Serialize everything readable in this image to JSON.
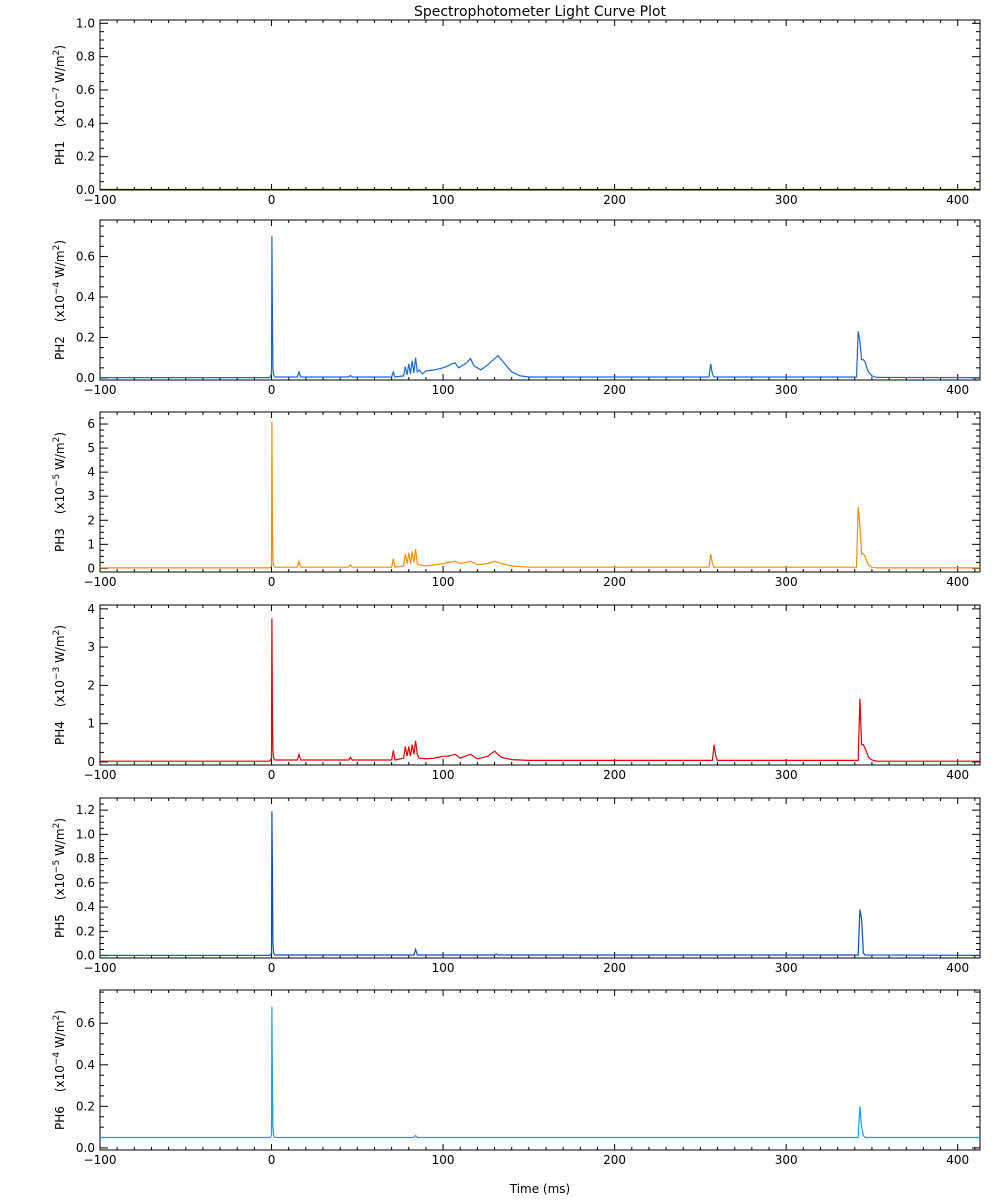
{
  "chart_data": {
    "type": "line",
    "title": "Spectrophotometer Light Curve Plot",
    "xlabel": "Time (ms)",
    "xlim": [
      -100,
      413
    ],
    "x_ticks": [
      -100,
      0,
      100,
      200,
      300,
      400
    ],
    "panels": [
      {
        "name": "PH1",
        "ylabel_prefix": "PH1",
        "unit_base": "(x10",
        "unit_exp": "−7",
        "unit_rest": " W/m",
        "unit_sq": "2",
        "unit_close": ")",
        "color": "#000066",
        "ylim": [
          0,
          1.02
        ],
        "y_ticks": [
          0.0,
          0.2,
          0.4,
          0.6,
          0.8,
          1.0
        ],
        "y_tick_labels": [
          "0.0",
          "0.2",
          "0.4",
          "0.6",
          "0.8",
          "1.0"
        ],
        "x": [
          -100,
          413
        ],
        "y": [
          0.003,
          0.003
        ]
      },
      {
        "name": "PH2",
        "ylabel_prefix": "PH2",
        "unit_base": "(x10",
        "unit_exp": "−4",
        "unit_rest": " W/m",
        "unit_sq": "2",
        "unit_close": ")",
        "color": "#1a66d6",
        "ylim": [
          -0.01,
          0.78
        ],
        "y_ticks": [
          0.0,
          0.2,
          0.4,
          0.6
        ],
        "y_tick_labels": [
          "0.0",
          "0.2",
          "0.4",
          "0.6"
        ],
        "x": [
          -100,
          -1,
          0,
          0.2,
          0.5,
          0.8,
          1.2,
          2,
          15,
          16,
          17,
          30,
          45,
          46,
          47,
          70,
          71,
          72,
          77,
          78,
          79,
          80,
          81,
          82,
          83,
          84,
          85,
          86,
          88,
          90,
          95,
          100,
          103,
          105,
          107,
          109,
          113,
          116,
          118,
          122,
          126,
          130,
          132,
          136,
          140,
          145,
          150,
          255,
          256,
          257,
          258,
          270,
          341,
          342,
          343,
          344,
          345,
          346,
          347,
          348,
          350,
          353,
          413
        ],
        "y": [
          0.002,
          0.002,
          0.02,
          0.7,
          0.35,
          0.05,
          0.015,
          0.005,
          0.005,
          0.03,
          0.005,
          0.005,
          0.005,
          0.012,
          0.005,
          0.005,
          0.03,
          0.005,
          0.01,
          0.055,
          0.015,
          0.07,
          0.02,
          0.085,
          0.025,
          0.1,
          0.03,
          0.04,
          0.02,
          0.035,
          0.04,
          0.05,
          0.06,
          0.07,
          0.075,
          0.05,
          0.07,
          0.095,
          0.06,
          0.04,
          0.065,
          0.095,
          0.11,
          0.07,
          0.03,
          0.01,
          0.005,
          0.005,
          0.07,
          0.02,
          0.005,
          0.005,
          0.005,
          0.23,
          0.18,
          0.09,
          0.09,
          0.08,
          0.05,
          0.03,
          0.01,
          0.003,
          0.002
        ]
      },
      {
        "name": "PH3",
        "ylabel_prefix": "PH3",
        "unit_base": "(x10",
        "unit_exp": "−5",
        "unit_rest": " W/m",
        "unit_sq": "2",
        "unit_close": ")",
        "color": "#ff8c00",
        "ylim": [
          -0.15,
          6.5
        ],
        "y_ticks": [
          0,
          1,
          2,
          3,
          4,
          5,
          6
        ],
        "y_tick_labels": [
          "0",
          "1",
          "2",
          "3",
          "4",
          "5",
          "6"
        ],
        "x": [
          -100,
          -1,
          0,
          0.2,
          0.5,
          0.8,
          1.2,
          2,
          15,
          16,
          17,
          45,
          46,
          47,
          70,
          71,
          72,
          77,
          78,
          79,
          80,
          81,
          82,
          83,
          84,
          85,
          86,
          90,
          95,
          100,
          103,
          107,
          110,
          116,
          120,
          126,
          130,
          134,
          140,
          150,
          255,
          256,
          257,
          258,
          341,
          342,
          343,
          344,
          345,
          346,
          347,
          348,
          350,
          353,
          413
        ],
        "y": [
          0.02,
          0.02,
          0.1,
          6.1,
          2.0,
          0.4,
          0.1,
          0.05,
          0.05,
          0.3,
          0.05,
          0.05,
          0.15,
          0.05,
          0.05,
          0.4,
          0.05,
          0.1,
          0.6,
          0.2,
          0.65,
          0.2,
          0.7,
          0.25,
          0.8,
          0.2,
          0.15,
          0.1,
          0.15,
          0.2,
          0.25,
          0.3,
          0.2,
          0.3,
          0.15,
          0.2,
          0.3,
          0.2,
          0.1,
          0.05,
          0.05,
          0.6,
          0.2,
          0.05,
          0.05,
          2.55,
          1.8,
          0.6,
          0.6,
          0.5,
          0.3,
          0.15,
          0.05,
          0.02,
          0.02
        ]
      },
      {
        "name": "PH4",
        "ylabel_prefix": "PH4",
        "unit_base": "(x10",
        "unit_exp": "−3",
        "unit_rest": " W/m",
        "unit_sq": "2",
        "unit_close": ")",
        "color": "#e00000",
        "ylim": [
          -0.08,
          4.1
        ],
        "y_ticks": [
          0,
          1,
          2,
          3,
          4
        ],
        "y_tick_labels": [
          "0",
          "1",
          "2",
          "3",
          "4"
        ],
        "x": [
          -100,
          -1,
          0,
          0.2,
          0.5,
          0.8,
          1.2,
          2,
          15,
          16,
          17,
          45,
          46,
          47,
          70,
          71,
          72,
          77,
          78,
          79,
          80,
          81,
          82,
          83,
          84,
          85,
          86,
          90,
          95,
          100,
          103,
          107,
          110,
          116,
          120,
          126,
          130,
          134,
          140,
          150,
          257,
          258,
          259,
          260,
          342,
          343,
          344,
          345,
          346,
          347,
          348,
          350,
          353,
          413
        ],
        "y": [
          0.02,
          0.02,
          0.1,
          3.75,
          1.3,
          0.3,
          0.1,
          0.05,
          0.05,
          0.2,
          0.05,
          0.05,
          0.12,
          0.05,
          0.05,
          0.3,
          0.05,
          0.1,
          0.4,
          0.15,
          0.4,
          0.15,
          0.45,
          0.2,
          0.55,
          0.2,
          0.1,
          0.08,
          0.1,
          0.15,
          0.15,
          0.2,
          0.1,
          0.2,
          0.08,
          0.15,
          0.28,
          0.12,
          0.06,
          0.04,
          0.04,
          0.45,
          0.15,
          0.04,
          0.04,
          1.65,
          0.45,
          0.45,
          0.35,
          0.25,
          0.12,
          0.05,
          0.02,
          0.02
        ]
      },
      {
        "name": "PH5",
        "ylabel_prefix": "PH5",
        "unit_base": "(x10",
        "unit_exp": "−5",
        "unit_rest": " W/m",
        "unit_sq": "2",
        "unit_close": ")",
        "color": "#0a4fc0",
        "ylim": [
          -0.02,
          1.3
        ],
        "y_ticks": [
          0.0,
          0.2,
          0.4,
          0.6,
          0.8,
          1.0,
          1.2
        ],
        "y_tick_labels": [
          "0.0",
          "0.2",
          "0.4",
          "0.6",
          "0.8",
          "1.0",
          "1.2"
        ],
        "x": [
          -100,
          -1,
          0,
          0.2,
          0.5,
          0.8,
          1.2,
          2,
          83,
          84,
          85,
          130,
          131,
          132,
          342,
          343,
          344,
          345,
          346,
          413
        ],
        "y": [
          0.002,
          0.002,
          0.02,
          1.19,
          0.72,
          0.1,
          0.02,
          0.005,
          0.005,
          0.05,
          0.005,
          0.005,
          0.012,
          0.005,
          0.005,
          0.38,
          0.3,
          0.02,
          0.005,
          0.002
        ]
      },
      {
        "name": "PH6",
        "ylabel_prefix": "PH6",
        "unit_base": "(x10",
        "unit_exp": "−4",
        "unit_rest": " W/m",
        "unit_sq": "2",
        "unit_close": ")",
        "color": "#14a0e6",
        "ylim": [
          -0.01,
          0.76
        ],
        "y_ticks": [
          0.0,
          0.2,
          0.4,
          0.6
        ],
        "y_tick_labels": [
          "0.0",
          "0.2",
          "0.4",
          "0.6"
        ],
        "x": [
          -100,
          -1,
          0,
          0.2,
          0.5,
          0.8,
          1.2,
          2,
          83,
          84,
          85,
          342,
          343,
          344,
          345,
          346,
          413
        ],
        "y": [
          0.05,
          0.05,
          0.06,
          0.68,
          0.32,
          0.1,
          0.06,
          0.05,
          0.05,
          0.06,
          0.05,
          0.05,
          0.2,
          0.1,
          0.06,
          0.05,
          0.05
        ]
      }
    ]
  }
}
